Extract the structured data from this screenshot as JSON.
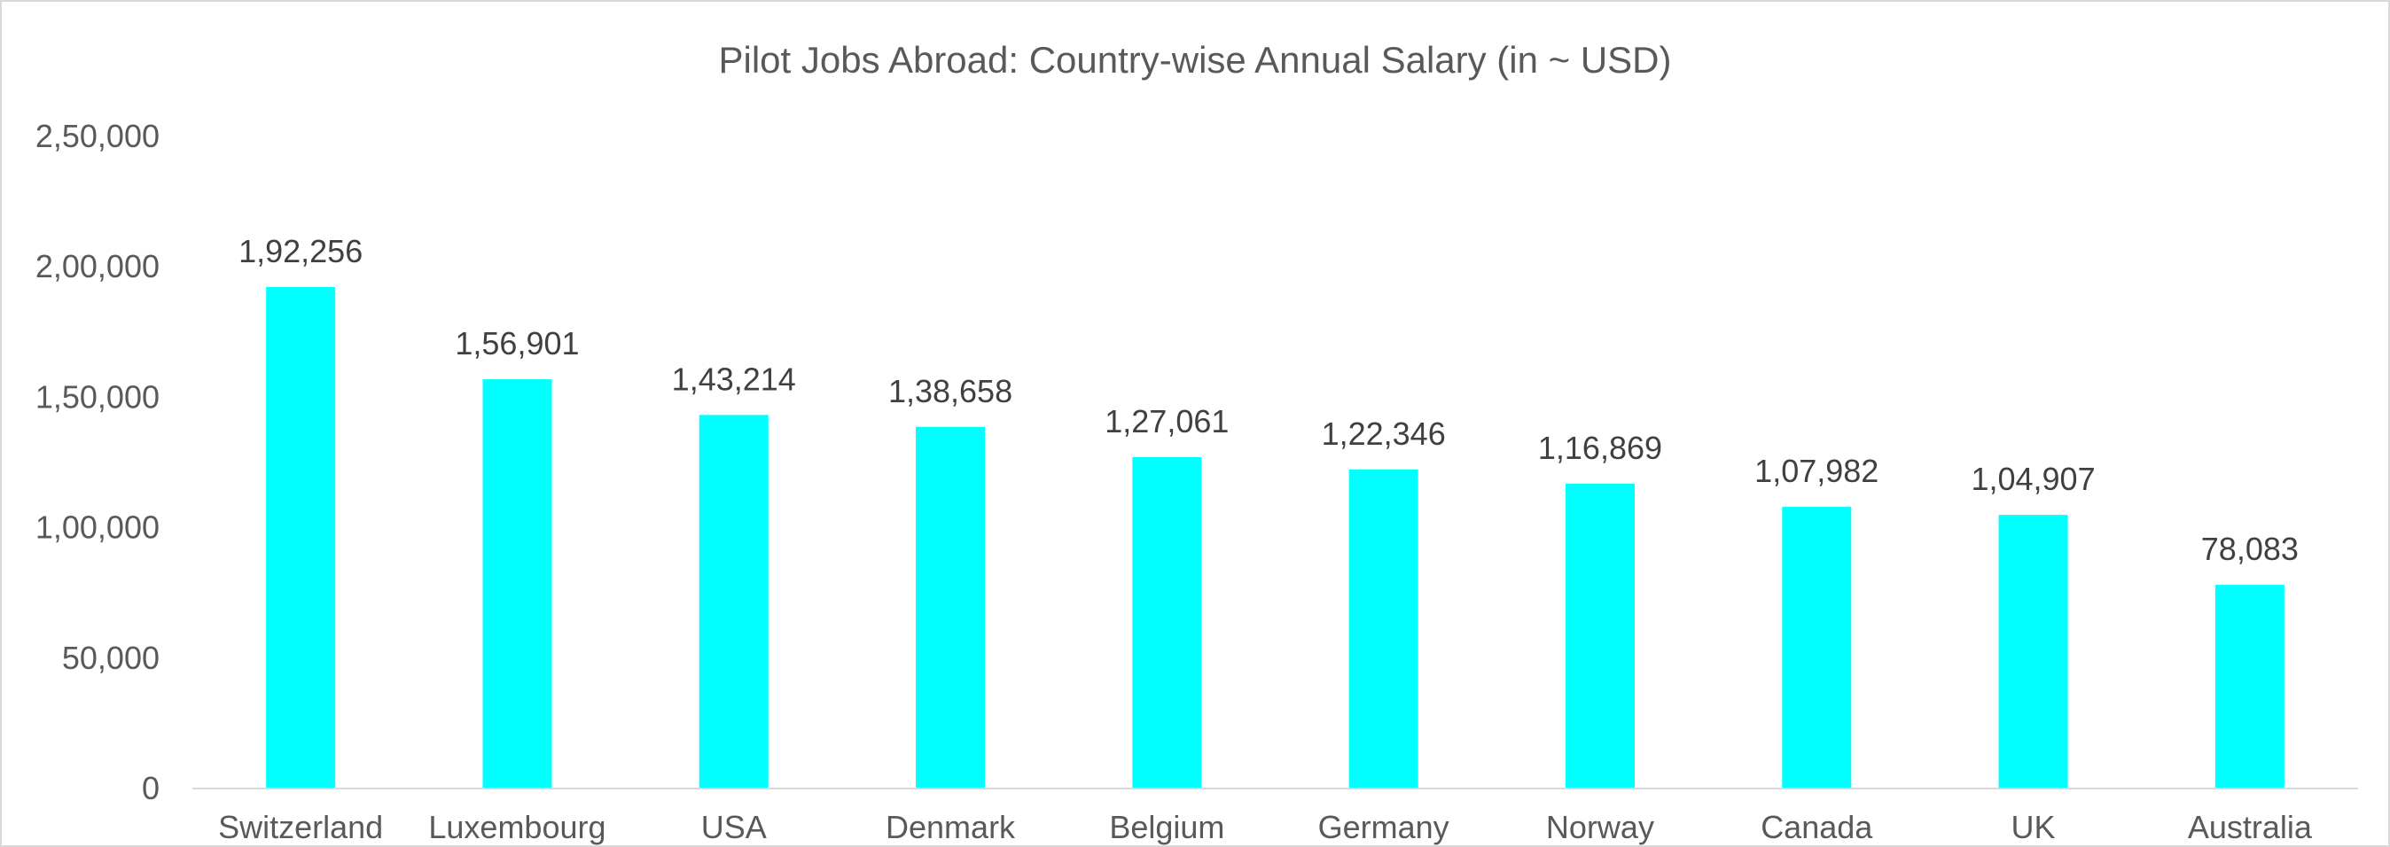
{
  "chart_data": {
    "type": "bar",
    "title": "Pilot Jobs Abroad: Country-wise Annual Salary (in ~ USD)",
    "xlabel": "",
    "ylabel": "",
    "categories": [
      "Switzerland",
      "Luxembourg",
      "USA",
      "Denmark",
      "Belgium",
      "Germany",
      "Norway",
      "Canada",
      "UK",
      "Australia"
    ],
    "values": [
      192256,
      156901,
      143214,
      138658,
      127061,
      122346,
      116869,
      107982,
      104907,
      78083
    ],
    "value_labels": [
      "1,92,256",
      "1,56,901",
      "1,43,214",
      "1,38,658",
      "1,27,061",
      "1,22,346",
      "1,16,869",
      "1,07,982",
      "1,04,907",
      "78,083"
    ],
    "ylim": [
      0,
      250000
    ],
    "yticks": [
      0,
      50000,
      100000,
      150000,
      200000,
      250000
    ],
    "ytick_labels": [
      "0",
      "50,000",
      "1,00,000",
      "1,50,000",
      "2,00,000",
      "2,50,000"
    ],
    "grid": false,
    "legend": "none",
    "bar_color": "#00FFFF",
    "axis_color": "#d9d9d9"
  }
}
